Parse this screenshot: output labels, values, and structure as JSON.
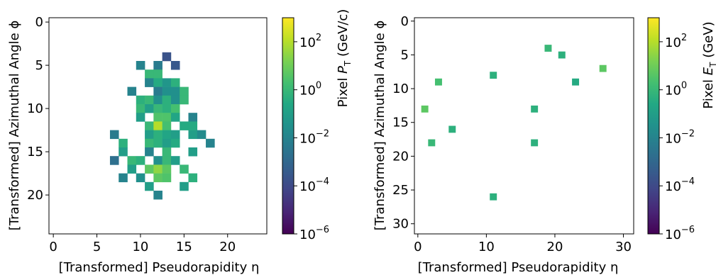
{
  "chart_data": [
    {
      "type": "heatmap",
      "xlabel": "[Transformed] Pseudorapidity η",
      "ylabel": "[Transformed] Azimuthal Angle ϕ",
      "xlim": [
        -0.5,
        24.5
      ],
      "ylim": [
        24.5,
        -0.5
      ],
      "xticks": [
        0,
        5,
        10,
        15,
        20
      ],
      "yticks": [
        0,
        5,
        10,
        15,
        20
      ],
      "colorbar": {
        "label_main": "Pixel ",
        "label_var": "P",
        "label_sub": "T",
        "label_unit": " (GeV/c)",
        "scale": "log",
        "range": [
          1e-06,
          1000
        ],
        "ticks": [
          {
            "base": "10",
            "exp": "2",
            "v": 100
          },
          {
            "base": "10",
            "exp": "0",
            "v": 1
          },
          {
            "base": "10",
            "exp": "−2",
            "v": 0.01
          },
          {
            "base": "10",
            "exp": "−4",
            "v": 0.0001
          },
          {
            "base": "10",
            "exp": "−6",
            "v": 1e-06
          }
        ]
      },
      "pixels": [
        {
          "x": 13,
          "y": 4,
          "v": 0.0002
        },
        {
          "x": 10,
          "y": 5,
          "v": 0.01
        },
        {
          "x": 12,
          "y": 5,
          "v": 0.005
        },
        {
          "x": 14,
          "y": 5,
          "v": 0.0003
        },
        {
          "x": 11,
          "y": 6,
          "v": 1
        },
        {
          "x": 12,
          "y": 6,
          "v": 1
        },
        {
          "x": 11,
          "y": 7,
          "v": 0.01
        },
        {
          "x": 12,
          "y": 7,
          "v": 0.3
        },
        {
          "x": 13,
          "y": 7,
          "v": 0.05
        },
        {
          "x": 14,
          "y": 7,
          "v": 0.5
        },
        {
          "x": 9,
          "y": 8,
          "v": 0.01
        },
        {
          "x": 12,
          "y": 8,
          "v": 0.005
        },
        {
          "x": 13,
          "y": 8,
          "v": 0.03
        },
        {
          "x": 14,
          "y": 8,
          "v": 0.03
        },
        {
          "x": 15,
          "y": 8,
          "v": 1
        },
        {
          "x": 10,
          "y": 9,
          "v": 0.5
        },
        {
          "x": 11,
          "y": 9,
          "v": 1
        },
        {
          "x": 12,
          "y": 9,
          "v": 0.03
        },
        {
          "x": 13,
          "y": 9,
          "v": 0.5
        },
        {
          "x": 14,
          "y": 9,
          "v": 0.03
        },
        {
          "x": 15,
          "y": 9,
          "v": 1
        },
        {
          "x": 10,
          "y": 10,
          "v": 1
        },
        {
          "x": 11,
          "y": 10,
          "v": 0.1
        },
        {
          "x": 12,
          "y": 10,
          "v": 1
        },
        {
          "x": 13,
          "y": 10,
          "v": 0.5
        },
        {
          "x": 14,
          "y": 10,
          "v": 2
        },
        {
          "x": 10,
          "y": 11,
          "v": 0.1
        },
        {
          "x": 12,
          "y": 11,
          "v": 3
        },
        {
          "x": 13,
          "y": 11,
          "v": 3
        },
        {
          "x": 14,
          "y": 11,
          "v": 0.2
        },
        {
          "x": 16,
          "y": 11,
          "v": 0.01
        },
        {
          "x": 11,
          "y": 12,
          "v": 1
        },
        {
          "x": 12,
          "y": 12,
          "v": 100
        },
        {
          "x": 13,
          "y": 12,
          "v": 2
        },
        {
          "x": 15,
          "y": 12,
          "v": 0.3
        },
        {
          "x": 16,
          "y": 12,
          "v": 0.3
        },
        {
          "x": 7,
          "y": 13,
          "v": 0.005
        },
        {
          "x": 11,
          "y": 13,
          "v": 0.1
        },
        {
          "x": 12,
          "y": 13,
          "v": 0.5
        },
        {
          "x": 13,
          "y": 13,
          "v": 0.2
        },
        {
          "x": 14,
          "y": 13,
          "v": 0.1
        },
        {
          "x": 16,
          "y": 13,
          "v": 0.1
        },
        {
          "x": 17,
          "y": 13,
          "v": 0.02
        },
        {
          "x": 8,
          "y": 14,
          "v": 0.5
        },
        {
          "x": 11,
          "y": 14,
          "v": 1
        },
        {
          "x": 12,
          "y": 14,
          "v": 0.5
        },
        {
          "x": 13,
          "y": 14,
          "v": 0.1
        },
        {
          "x": 14,
          "y": 14,
          "v": 0.3
        },
        {
          "x": 18,
          "y": 14,
          "v": 0.01
        },
        {
          "x": 8,
          "y": 15,
          "v": 0.1
        },
        {
          "x": 11,
          "y": 15,
          "v": 0.01
        },
        {
          "x": 13,
          "y": 15,
          "v": 1
        },
        {
          "x": 16,
          "y": 15,
          "v": 0.1
        },
        {
          "x": 7,
          "y": 16,
          "v": 0.002
        },
        {
          "x": 9,
          "y": 16,
          "v": 1
        },
        {
          "x": 10,
          "y": 16,
          "v": 0.5
        },
        {
          "x": 12,
          "y": 16,
          "v": 0.03
        },
        {
          "x": 13,
          "y": 16,
          "v": 1
        },
        {
          "x": 14,
          "y": 16,
          "v": 0.1
        },
        {
          "x": 9,
          "y": 17,
          "v": 0.1
        },
        {
          "x": 11,
          "y": 17,
          "v": 5
        },
        {
          "x": 12,
          "y": 17,
          "v": 30
        },
        {
          "x": 13,
          "y": 17,
          "v": 5
        },
        {
          "x": 15,
          "y": 17,
          "v": 1
        },
        {
          "x": 8,
          "y": 18,
          "v": 0.01
        },
        {
          "x": 10,
          "y": 18,
          "v": 0.03
        },
        {
          "x": 12,
          "y": 18,
          "v": 5
        },
        {
          "x": 13,
          "y": 18,
          "v": 3
        },
        {
          "x": 16,
          "y": 18,
          "v": 0.5
        },
        {
          "x": 11,
          "y": 19,
          "v": 0.1
        },
        {
          "x": 15,
          "y": 19,
          "v": 0.1
        },
        {
          "x": 12,
          "y": 20,
          "v": 0.01
        }
      ]
    },
    {
      "type": "heatmap",
      "xlabel": "[Transformed] Pseudorapidity η",
      "ylabel": "[Transformed] Azimuthal Angle ϕ",
      "xlim": [
        -0.5,
        31.5
      ],
      "ylim": [
        31.5,
        -0.5
      ],
      "xticks": [
        0,
        10,
        20,
        30
      ],
      "yticks": [
        0,
        5,
        10,
        15,
        20,
        25,
        30
      ],
      "colorbar": {
        "label_main": "Pixel ",
        "label_var": "E",
        "label_sub": "T",
        "label_unit": " (GeV)",
        "scale": "log",
        "range": [
          1e-06,
          1000
        ],
        "ticks": [
          {
            "base": "10",
            "exp": "2",
            "v": 100
          },
          {
            "base": "10",
            "exp": "0",
            "v": 1
          },
          {
            "base": "10",
            "exp": "−2",
            "v": 0.01
          },
          {
            "base": "10",
            "exp": "−4",
            "v": 0.0001
          },
          {
            "base": "10",
            "exp": "−6",
            "v": 1e-06
          }
        ]
      },
      "pixels": [
        {
          "x": 19,
          "y": 4,
          "v": 1
        },
        {
          "x": 21,
          "y": 5,
          "v": 0.5
        },
        {
          "x": 27,
          "y": 7,
          "v": 5
        },
        {
          "x": 11,
          "y": 8,
          "v": 0.5
        },
        {
          "x": 3,
          "y": 9,
          "v": 2
        },
        {
          "x": 23,
          "y": 9,
          "v": 0.3
        },
        {
          "x": 1,
          "y": 13,
          "v": 5
        },
        {
          "x": 17,
          "y": 13,
          "v": 0.5
        },
        {
          "x": 5,
          "y": 16,
          "v": 0.5
        },
        {
          "x": 2,
          "y": 18,
          "v": 1
        },
        {
          "x": 17,
          "y": 18,
          "v": 0.5
        },
        {
          "x": 11,
          "y": 26,
          "v": 0.5
        }
      ]
    }
  ]
}
